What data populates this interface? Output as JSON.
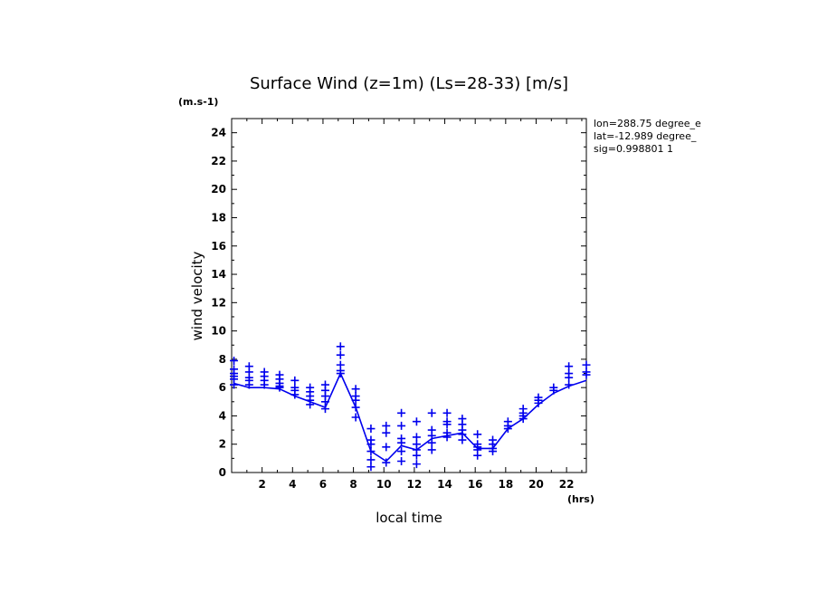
{
  "chart_data": {
    "type": "line",
    "title": "Surface Wind (z=1m) (Ls=28-33) [m/s]",
    "y_unit": "(m.s-1)",
    "xlabel": "local time",
    "x_unit": "(hrs)",
    "ylabel": "wind velocity",
    "info": [
      "lon=288.75 degree_e",
      "lat=-12.989 degree_",
      "sig=0.998801 1"
    ],
    "xlim": [
      0,
      23.3
    ],
    "ylim": [
      0,
      25
    ],
    "x_ticks": [
      2,
      4,
      6,
      8,
      10,
      12,
      14,
      16,
      18,
      20,
      22
    ],
    "y_ticks": [
      0,
      2,
      4,
      6,
      8,
      10,
      12,
      14,
      16,
      18,
      20,
      22,
      24
    ],
    "grid": false,
    "colors": {
      "series": "#0000ee",
      "axes": "#000000"
    },
    "series": [
      {
        "kind": "line",
        "x": [
          0.15,
          1.15,
          2.15,
          3.15,
          4.15,
          5.15,
          6.15,
          7.15,
          8.15,
          9.15,
          10.15,
          11.15,
          12.15,
          13.15,
          14.15,
          15.15,
          16.15,
          17.15,
          18.15,
          19.15,
          20.15,
          21.15,
          22.15,
          23.3
        ],
        "y": [
          6.3,
          6.0,
          6.0,
          5.9,
          5.4,
          5.0,
          4.6,
          7.0,
          4.6,
          1.5,
          0.8,
          1.9,
          1.6,
          2.4,
          2.6,
          2.8,
          1.7,
          1.7,
          3.1,
          3.8,
          4.8,
          5.6,
          6.1,
          6.5
        ]
      },
      {
        "kind": "markers",
        "marker": "+",
        "x": [
          0.15,
          0.15,
          0.15,
          0.15,
          0.15,
          0.15,
          1.15,
          1.15,
          1.15,
          1.15,
          1.15,
          2.15,
          2.15,
          2.15,
          2.15,
          3.15,
          3.15,
          3.15,
          3.15,
          3.15,
          4.15,
          4.15,
          4.15,
          4.15,
          5.15,
          5.15,
          5.15,
          5.15,
          5.15,
          6.15,
          6.15,
          6.15,
          6.15,
          6.15,
          7.15,
          7.15,
          7.15,
          7.15,
          7.15,
          8.15,
          8.15,
          8.15,
          8.15,
          8.15,
          9.15,
          9.15,
          9.15,
          9.15,
          9.15,
          9.15,
          10.15,
          10.15,
          10.15,
          10.15,
          11.15,
          11.15,
          11.15,
          11.15,
          11.15,
          11.15,
          12.15,
          12.15,
          12.15,
          12.15,
          12.15,
          12.15,
          13.15,
          13.15,
          13.15,
          13.15,
          13.15,
          14.15,
          14.15,
          14.15,
          14.15,
          14.15,
          15.15,
          15.15,
          15.15,
          15.15,
          15.15,
          16.15,
          16.15,
          16.15,
          16.15,
          16.15,
          17.15,
          17.15,
          17.15,
          17.15,
          18.15,
          18.15,
          18.15,
          19.15,
          19.15,
          19.15,
          19.15,
          20.15,
          20.15,
          20.15,
          21.15,
          21.15,
          22.15,
          22.15,
          22.15,
          22.15,
          23.3,
          23.3,
          23.3
        ],
        "y": [
          7.9,
          7.3,
          7.0,
          6.8,
          6.6,
          6.2,
          7.5,
          7.1,
          6.7,
          6.5,
          6.2,
          7.1,
          6.8,
          6.5,
          6.2,
          6.9,
          6.6,
          6.3,
          6.1,
          6.0,
          6.5,
          6.0,
          5.8,
          5.5,
          6.0,
          5.7,
          5.4,
          5.1,
          4.8,
          6.2,
          5.8,
          5.4,
          5.0,
          4.5,
          8.9,
          8.3,
          7.6,
          7.2,
          7.0,
          5.9,
          5.4,
          5.1,
          4.6,
          3.9,
          3.1,
          2.3,
          2.0,
          1.5,
          0.9,
          0.4,
          3.3,
          2.8,
          1.8,
          0.7,
          4.2,
          3.3,
          2.4,
          2.1,
          1.5,
          0.8,
          3.6,
          2.5,
          2.0,
          1.6,
          1.2,
          0.6,
          4.2,
          3.0,
          2.6,
          2.1,
          1.6,
          4.2,
          3.6,
          3.4,
          2.8,
          2.5,
          3.8,
          3.4,
          3.0,
          2.7,
          2.3,
          2.7,
          2.0,
          1.8,
          1.6,
          1.2,
          2.3,
          2.0,
          1.7,
          1.5,
          3.6,
          3.3,
          3.1,
          4.5,
          4.2,
          4.0,
          3.8,
          5.3,
          5.1,
          4.9,
          6.0,
          5.8,
          7.5,
          7.0,
          6.7,
          6.2,
          7.6,
          7.1,
          6.9
        ]
      }
    ]
  }
}
